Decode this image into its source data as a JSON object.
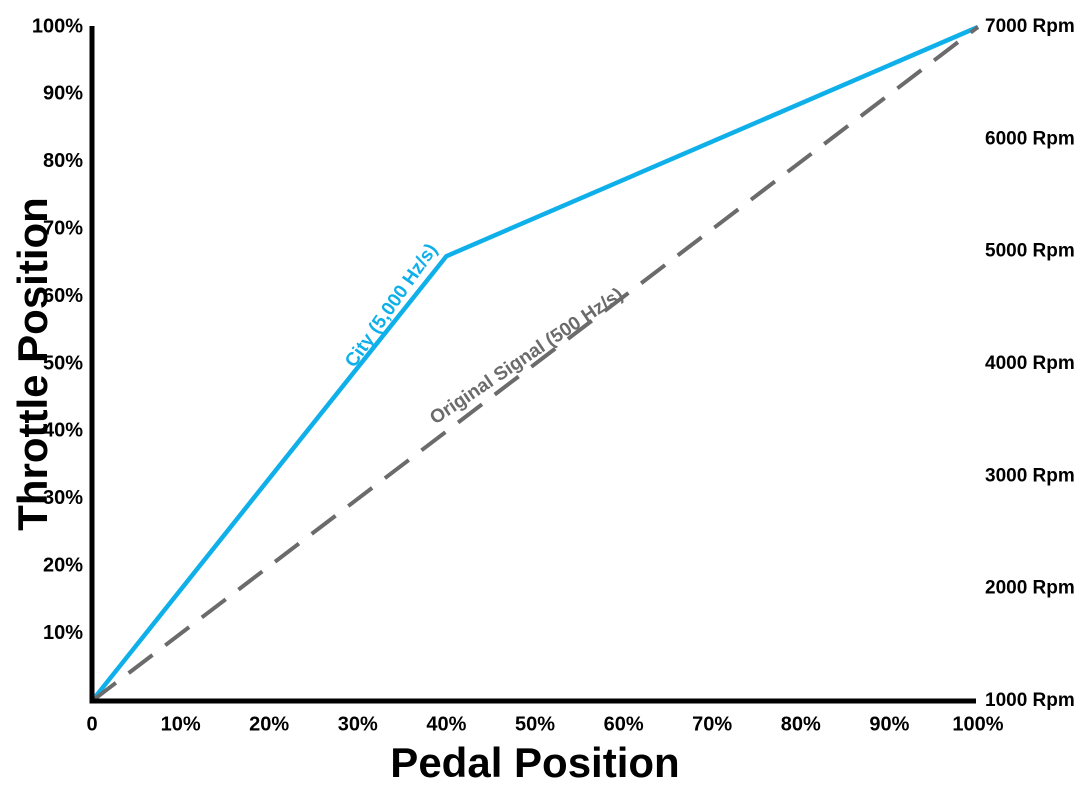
{
  "chart": {
    "x_title": "Pedal Position",
    "y_title": "Throttle Position"
  },
  "chart_data": {
    "type": "line",
    "title": "",
    "xlabel": "Pedal Position",
    "ylabel": "Throttle Position",
    "grid": false,
    "legend_position": "inline-on-lines",
    "x_range": [
      0,
      100
    ],
    "y_range": [
      0,
      100
    ],
    "y_right_range": [
      1000,
      7000
    ],
    "x_ticks": [
      {
        "value": 0,
        "label": "0"
      },
      {
        "value": 10,
        "label": "10%"
      },
      {
        "value": 20,
        "label": "20%"
      },
      {
        "value": 30,
        "label": "30%"
      },
      {
        "value": 40,
        "label": "40%"
      },
      {
        "value": 50,
        "label": "50%"
      },
      {
        "value": 60,
        "label": "60%"
      },
      {
        "value": 70,
        "label": "70%"
      },
      {
        "value": 80,
        "label": "80%"
      },
      {
        "value": 90,
        "label": "90%"
      },
      {
        "value": 100,
        "label": "100%"
      }
    ],
    "y_ticks_left": [
      {
        "value": 10,
        "label": "10%"
      },
      {
        "value": 20,
        "label": "20%"
      },
      {
        "value": 30,
        "label": "30%"
      },
      {
        "value": 40,
        "label": "40%"
      },
      {
        "value": 50,
        "label": "50%"
      },
      {
        "value": 60,
        "label": "60%"
      },
      {
        "value": 70,
        "label": "70%"
      },
      {
        "value": 80,
        "label": "80%"
      },
      {
        "value": 90,
        "label": "90%"
      },
      {
        "value": 100,
        "label": "100%"
      }
    ],
    "y_ticks_right": [
      {
        "value": 1000,
        "label": "1000 Rpm"
      },
      {
        "value": 2000,
        "label": "2000 Rpm"
      },
      {
        "value": 3000,
        "label": "3000 Rpm"
      },
      {
        "value": 4000,
        "label": "4000 Rpm"
      },
      {
        "value": 5000,
        "label": "5000 Rpm"
      },
      {
        "value": 6000,
        "label": "6000 Rpm"
      },
      {
        "value": 7000,
        "label": "7000 Rpm"
      }
    ],
    "series": [
      {
        "name": "City (5,000 Hz/s)",
        "color": "#0FB0EA",
        "dash": "solid",
        "points": [
          [
            0,
            0
          ],
          [
            40,
            66
          ],
          [
            100,
            100
          ]
        ]
      },
      {
        "name": "Original Signal (500 Hz/s)",
        "color": "#6B6B6B",
        "dash": "dashed",
        "points": [
          [
            0,
            0
          ],
          [
            100,
            100
          ]
        ]
      }
    ],
    "axis_color": "#000000"
  }
}
